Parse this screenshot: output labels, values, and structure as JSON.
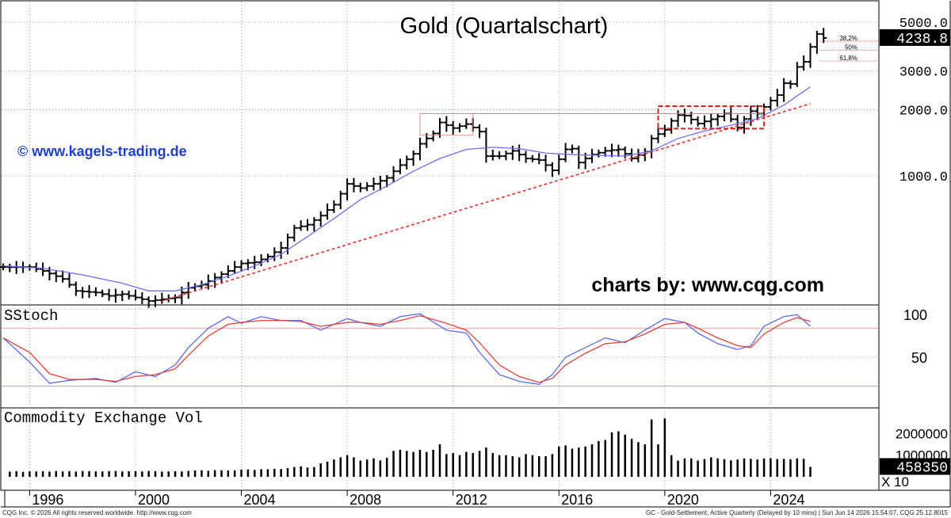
{
  "chart_data": {
    "type": "line",
    "title": "Gold (Quartalschart)",
    "watermark_left": "© www.kagels-trading.de",
    "watermark_right": "charts by: www.cqg.com",
    "x_tick_labels": [
      "1996",
      "2000",
      "2004",
      "2008",
      "2012",
      "2016",
      "2020",
      "2024"
    ],
    "x_tick_years": [
      1996,
      2000,
      2004,
      2008,
      2012,
      2016,
      2020,
      2024
    ],
    "x_range": [
      1995.0,
      2028.0
    ],
    "price_panel": {
      "scale": "log",
      "ylim": [
        270,
        6000
      ],
      "tick_values": [
        1000,
        2000,
        3000,
        5000
      ],
      "tick_labels": [
        "1000.0",
        "2000.0",
        "3000.0",
        "5000.0"
      ],
      "last_value_label": "4238.8",
      "last_value": 4238.8,
      "fib_levels": [
        {
          "label": "38,2%",
          "value": 4100
        },
        {
          "label": "50%",
          "value": 3720
        },
        {
          "label": "61,8%",
          "value": 3330
        }
      ],
      "quarterly_bars": [],
      "moving_average": [
        [
          1995.0,
          390
        ],
        [
          1996.5,
          380
        ],
        [
          1998.0,
          355
        ],
        [
          1999.5,
          325
        ],
        [
          2000.5,
          300
        ],
        [
          2001.5,
          300
        ],
        [
          2002.5,
          320
        ],
        [
          2003.5,
          350
        ],
        [
          2004.5,
          390
        ],
        [
          2005.5,
          440
        ],
        [
          2006.5,
          530
        ],
        [
          2007.5,
          640
        ],
        [
          2008.5,
          780
        ],
        [
          2009.5,
          900
        ],
        [
          2010.5,
          1050
        ],
        [
          2011.5,
          1200
        ],
        [
          2012.5,
          1320
        ],
        [
          2013.5,
          1350
        ],
        [
          2014.5,
          1330
        ],
        [
          2015.5,
          1270
        ],
        [
          2016.5,
          1250
        ],
        [
          2017.5,
          1240
        ],
        [
          2018.5,
          1230
        ],
        [
          2019.5,
          1300
        ],
        [
          2020.5,
          1480
        ],
        [
          2021.5,
          1600
        ],
        [
          2022.5,
          1700
        ],
        [
          2023.5,
          1820
        ],
        [
          2024.5,
          2100
        ],
        [
          2025.5,
          2540
        ]
      ],
      "support_line": [
        [
          2001.0,
          270
        ],
        [
          2025.5,
          2130
        ]
      ],
      "box_2011": {
        "x": [
          2010.75,
          2012.75
        ],
        "y": [
          1530,
          1920
        ]
      },
      "box_2020": {
        "x": [
          2019.75,
          2023.75
        ],
        "y": [
          1640,
          2075
        ]
      },
      "resistance_level": 1920
    },
    "stoch_panel": {
      "label": "SStoch",
      "ylim": [
        0,
        100
      ],
      "tick_values": [
        100,
        50
      ],
      "upper_line": 80,
      "lower_line": 20,
      "k": [
        [
          1995.0,
          70
        ],
        [
          1996.0,
          45
        ],
        [
          1996.75,
          23
        ],
        [
          1997.5,
          26
        ],
        [
          1998.5,
          28
        ],
        [
          1999.25,
          24
        ],
        [
          2000.0,
          35
        ],
        [
          2000.75,
          30
        ],
        [
          2001.5,
          42
        ],
        [
          2002.0,
          60
        ],
        [
          2002.75,
          80
        ],
        [
          2003.5,
          92
        ],
        [
          2004.0,
          85
        ],
        [
          2004.75,
          92
        ],
        [
          2005.5,
          88
        ],
        [
          2006.25,
          88
        ],
        [
          2007.0,
          78
        ],
        [
          2008.0,
          90
        ],
        [
          2008.5,
          86
        ],
        [
          2009.25,
          82
        ],
        [
          2010.0,
          92
        ],
        [
          2010.75,
          95
        ],
        [
          2011.75,
          78
        ],
        [
          2012.5,
          75
        ],
        [
          2013.0,
          55
        ],
        [
          2013.75,
          32
        ],
        [
          2014.5,
          25
        ],
        [
          2015.25,
          22
        ],
        [
          2015.75,
          32
        ],
        [
          2016.25,
          50
        ],
        [
          2017.0,
          60
        ],
        [
          2017.75,
          70
        ],
        [
          2018.5,
          65
        ],
        [
          2019.25,
          78
        ],
        [
          2020.0,
          90
        ],
        [
          2020.75,
          86
        ],
        [
          2021.25,
          75
        ],
        [
          2022.0,
          64
        ],
        [
          2022.75,
          58
        ],
        [
          2023.25,
          62
        ],
        [
          2023.75,
          82
        ],
        [
          2024.5,
          92
        ],
        [
          2025.0,
          94
        ],
        [
          2025.5,
          82
        ]
      ],
      "d": [
        [
          1995.0,
          70
        ],
        [
          1996.0,
          55
        ],
        [
          1996.75,
          33
        ],
        [
          1997.5,
          27
        ],
        [
          1998.5,
          27
        ],
        [
          1999.25,
          25
        ],
        [
          2000.0,
          30
        ],
        [
          2000.75,
          32
        ],
        [
          2001.5,
          38
        ],
        [
          2002.0,
          52
        ],
        [
          2002.75,
          72
        ],
        [
          2003.5,
          84
        ],
        [
          2004.0,
          86
        ],
        [
          2004.75,
          88
        ],
        [
          2005.5,
          88
        ],
        [
          2006.25,
          87
        ],
        [
          2007.0,
          82
        ],
        [
          2008.0,
          86
        ],
        [
          2008.5,
          86
        ],
        [
          2009.25,
          84
        ],
        [
          2010.0,
          88
        ],
        [
          2010.75,
          93
        ],
        [
          2011.75,
          85
        ],
        [
          2012.5,
          78
        ],
        [
          2013.0,
          65
        ],
        [
          2013.75,
          42
        ],
        [
          2014.5,
          30
        ],
        [
          2015.25,
          24
        ],
        [
          2015.75,
          28
        ],
        [
          2016.25,
          42
        ],
        [
          2017.0,
          54
        ],
        [
          2017.75,
          64
        ],
        [
          2018.5,
          66
        ],
        [
          2019.25,
          74
        ],
        [
          2020.0,
          84
        ],
        [
          2020.75,
          86
        ],
        [
          2021.25,
          80
        ],
        [
          2022.0,
          70
        ],
        [
          2022.75,
          62
        ],
        [
          2023.25,
          60
        ],
        [
          2023.75,
          74
        ],
        [
          2024.5,
          86
        ],
        [
          2025.0,
          91
        ],
        [
          2025.5,
          87
        ]
      ]
    },
    "volume_panel": {
      "label": "Commodity Exchange Vol",
      "tick_values": [
        2000000,
        1000000
      ],
      "tick_labels": [
        "2000000",
        "1000000"
      ],
      "last_value_label": "458350",
      "last_value": 458350,
      "multiplier_label": "X 10",
      "ylim": [
        0,
        3000000
      ],
      "volumes": [
        [
          1995.25,
          240000
        ],
        [
          1995.5,
          260000
        ],
        [
          1995.75,
          230000
        ],
        [
          1996.0,
          250000
        ],
        [
          1996.25,
          250000
        ],
        [
          1996.5,
          260000
        ],
        [
          1996.75,
          240000
        ],
        [
          1997.0,
          270000
        ],
        [
          1997.25,
          250000
        ],
        [
          1997.5,
          260000
        ],
        [
          1997.75,
          240000
        ],
        [
          1998.0,
          270000
        ],
        [
          1998.25,
          260000
        ],
        [
          1998.5,
          250000
        ],
        [
          1998.75,
          250000
        ],
        [
          1999.0,
          260000
        ],
        [
          1999.25,
          270000
        ],
        [
          1999.5,
          250000
        ],
        [
          1999.75,
          260000
        ],
        [
          2000.0,
          260000
        ],
        [
          2000.25,
          250000
        ],
        [
          2000.5,
          270000
        ],
        [
          2000.75,
          260000
        ],
        [
          2001.0,
          240000
        ],
        [
          2001.25,
          250000
        ],
        [
          2001.5,
          260000
        ],
        [
          2001.75,
          250000
        ],
        [
          2002.0,
          270000
        ],
        [
          2002.25,
          290000
        ],
        [
          2002.5,
          300000
        ],
        [
          2002.75,
          280000
        ],
        [
          2003.0,
          310000
        ],
        [
          2003.25,
          300000
        ],
        [
          2003.5,
          290000
        ],
        [
          2003.75,
          300000
        ],
        [
          2004.0,
          330000
        ],
        [
          2004.25,
          340000
        ],
        [
          2004.5,
          320000
        ],
        [
          2004.75,
          350000
        ],
        [
          2005.0,
          350000
        ],
        [
          2005.25,
          370000
        ],
        [
          2005.5,
          360000
        ],
        [
          2005.75,
          400000
        ],
        [
          2006.0,
          450000
        ],
        [
          2006.25,
          480000
        ],
        [
          2006.5,
          430000
        ],
        [
          2006.75,
          450000
        ],
        [
          2007.0,
          620000
        ],
        [
          2007.25,
          700000
        ],
        [
          2007.5,
          800000
        ],
        [
          2007.75,
          900000
        ],
        [
          2008.0,
          1000000
        ],
        [
          2008.25,
          900000
        ],
        [
          2008.5,
          750000
        ],
        [
          2008.75,
          800000
        ],
        [
          2009.0,
          850000
        ],
        [
          2009.25,
          760000
        ],
        [
          2009.5,
          880000
        ],
        [
          2009.75,
          1200000
        ],
        [
          2010.0,
          1250000
        ],
        [
          2010.25,
          1200000
        ],
        [
          2010.5,
          1150000
        ],
        [
          2010.75,
          1250000
        ],
        [
          2011.0,
          1150000
        ],
        [
          2011.25,
          1250000
        ],
        [
          2011.5,
          1500000
        ],
        [
          2011.75,
          1050000
        ],
        [
          2012.0,
          1100000
        ],
        [
          2012.25,
          1000000
        ],
        [
          2012.5,
          1150000
        ],
        [
          2012.75,
          1100000
        ],
        [
          2013.0,
          1200000
        ],
        [
          2013.25,
          1350000
        ],
        [
          2013.5,
          1100000
        ],
        [
          2013.75,
          1000000
        ],
        [
          2014.0,
          1000000
        ],
        [
          2014.25,
          950000
        ],
        [
          2014.5,
          900000
        ],
        [
          2014.75,
          1050000
        ],
        [
          2015.0,
          1000000
        ],
        [
          2015.25,
          950000
        ],
        [
          2015.5,
          950000
        ],
        [
          2015.75,
          1050000
        ],
        [
          2016.0,
          1400000
        ],
        [
          2016.25,
          1450000
        ],
        [
          2016.5,
          1300000
        ],
        [
          2016.75,
          1350000
        ],
        [
          2017.0,
          1400000
        ],
        [
          2017.25,
          1500000
        ],
        [
          2017.5,
          1650000
        ],
        [
          2017.75,
          1700000
        ],
        [
          2018.0,
          2050000
        ],
        [
          2018.25,
          2100000
        ],
        [
          2018.5,
          1950000
        ],
        [
          2018.75,
          1750000
        ],
        [
          2019.0,
          1600000
        ],
        [
          2019.25,
          1500000
        ],
        [
          2019.5,
          2650000
        ],
        [
          2019.75,
          1500000
        ],
        [
          2020.0,
          2700000
        ],
        [
          2020.25,
          1000000
        ],
        [
          2020.5,
          750000
        ],
        [
          2020.75,
          850000
        ],
        [
          2021.0,
          850000
        ],
        [
          2021.25,
          750000
        ],
        [
          2021.5,
          820000
        ],
        [
          2021.75,
          900000
        ],
        [
          2022.0,
          850000
        ],
        [
          2022.25,
          820000
        ],
        [
          2022.5,
          760000
        ],
        [
          2022.75,
          800000
        ],
        [
          2023.0,
          850000
        ],
        [
          2023.25,
          830000
        ],
        [
          2023.5,
          800000
        ],
        [
          2023.75,
          850000
        ],
        [
          2024.0,
          860000
        ],
        [
          2024.25,
          820000
        ],
        [
          2024.5,
          830000
        ],
        [
          2024.75,
          810000
        ],
        [
          2025.0,
          850000
        ],
        [
          2025.25,
          830000
        ],
        [
          2025.5,
          460000
        ]
      ]
    }
  },
  "footer": {
    "left": "CQG Inc. © 2026 All rights reserved worldwide. http://www.cqg.com",
    "right": "GC - Gold-Settlement, Active Quarterly (Delayed by 10 mins) | Sun Jun 14 2026 15:54:07, CQG 25.12.8015"
  },
  "colors": {
    "background": "#ffffff",
    "bars": "#000000",
    "moving_average": "#6e6ef0",
    "support_line": "#e83232",
    "stoch_k": "#5a6af0",
    "stoch_d": "#e84040",
    "stoch_upper": "#f0a0a0",
    "stoch_lower": "#a0a0f0",
    "watermark_left": "#1e3fd2"
  }
}
